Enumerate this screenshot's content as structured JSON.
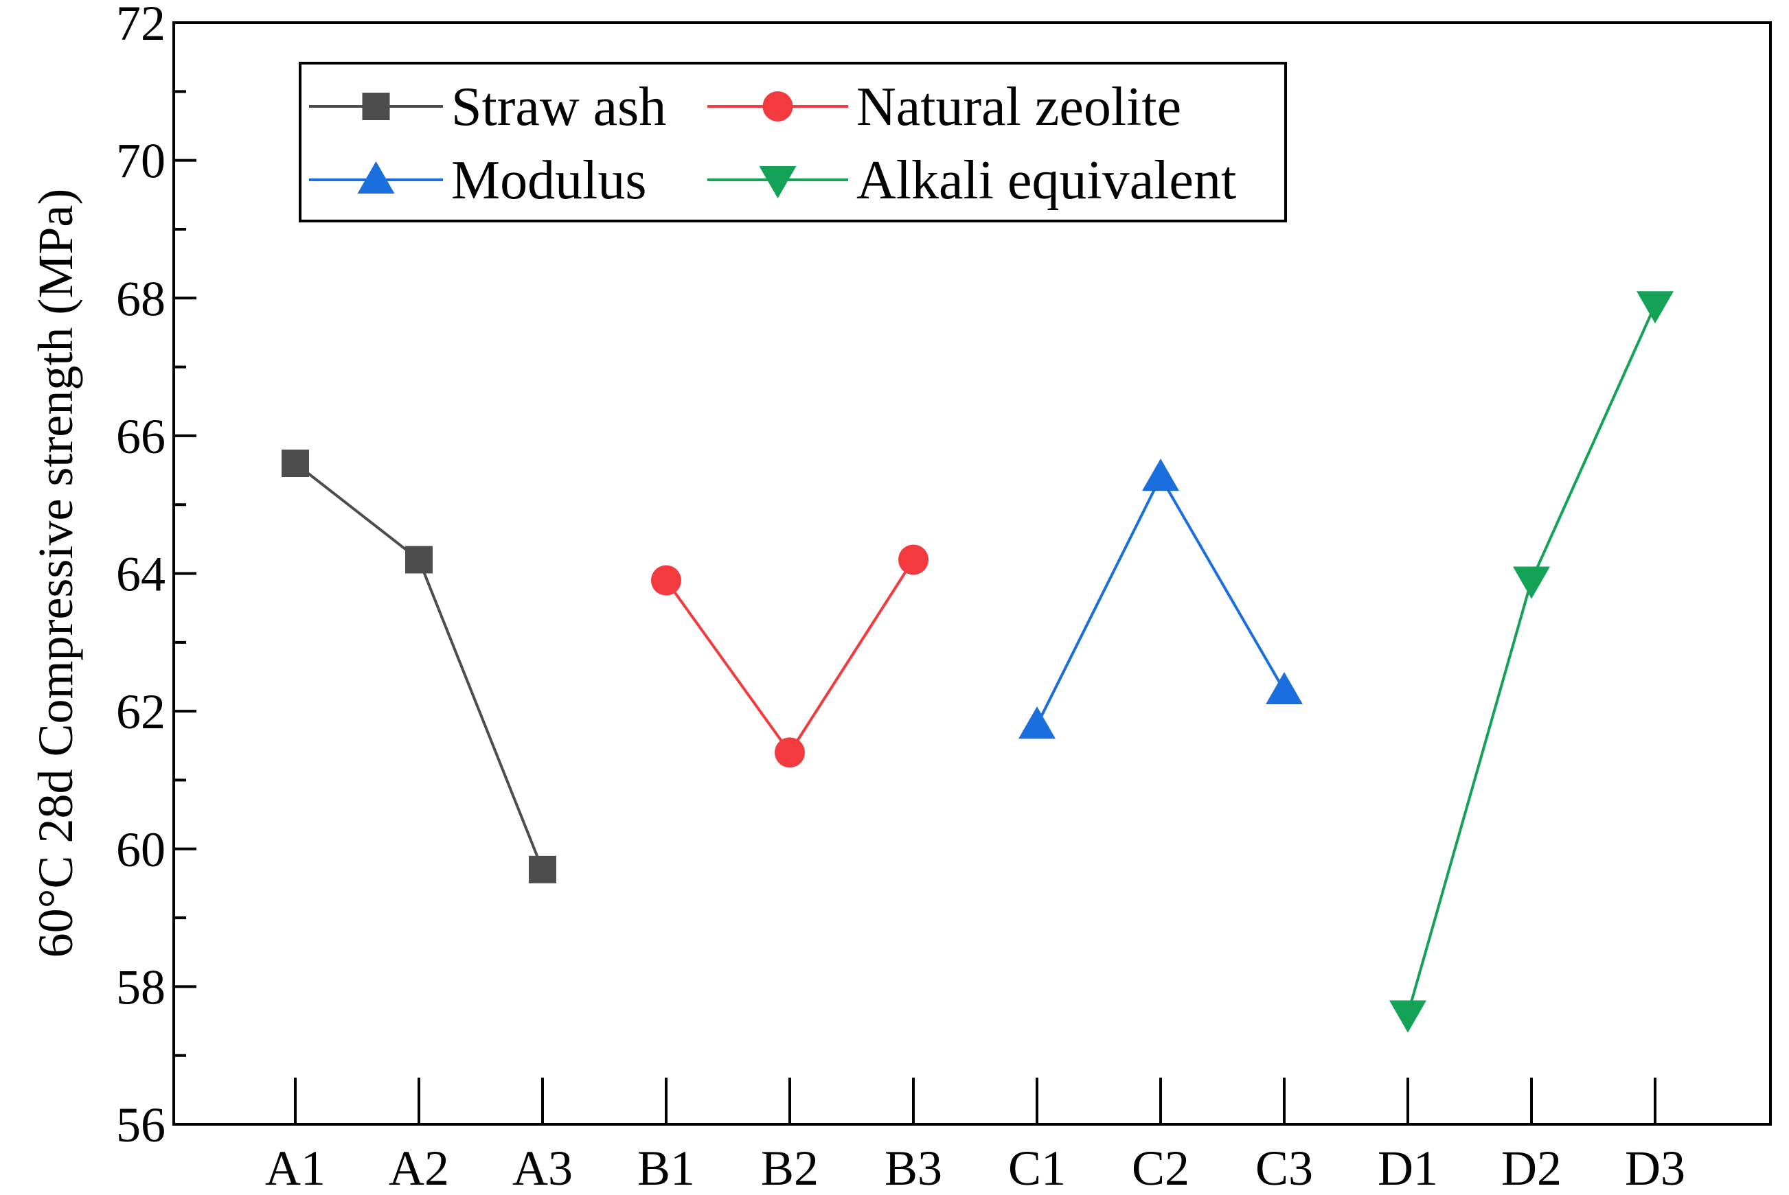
{
  "chart_data": {
    "type": "line",
    "title": "",
    "xlabel": "",
    "ylabel": "60°C 28d Compressive strength (MPa)",
    "ylim": [
      56,
      72
    ],
    "yticks": [
      56,
      58,
      60,
      62,
      64,
      66,
      68,
      70,
      72
    ],
    "categories": [
      "A1",
      "A2",
      "A3",
      "B1",
      "B2",
      "B3",
      "C1",
      "C2",
      "C3",
      "D1",
      "D2",
      "D3"
    ],
    "grid": false,
    "legend_position": "top-left",
    "series": [
      {
        "name": "Straw ash",
        "marker": "square",
        "color": "#4d4d4d",
        "x": [
          "A1",
          "A2",
          "A3"
        ],
        "values": [
          65.6,
          64.2,
          59.7
        ]
      },
      {
        "name": "Natural zeolite",
        "marker": "circle",
        "color": "#f23a3f",
        "x": [
          "B1",
          "B2",
          "B3"
        ],
        "values": [
          63.9,
          61.4,
          64.2
        ]
      },
      {
        "name": "Modulus",
        "marker": "triangle-up",
        "color": "#1a6ede",
        "x": [
          "C1",
          "C2",
          "C3"
        ],
        "values": [
          61.8,
          65.4,
          62.3
        ]
      },
      {
        "name": "Alkali equivalent",
        "marker": "triangle-down",
        "color": "#14a256",
        "x": [
          "D1",
          "D2",
          "D3"
        ],
        "values": [
          57.6,
          63.9,
          67.9
        ]
      }
    ]
  }
}
